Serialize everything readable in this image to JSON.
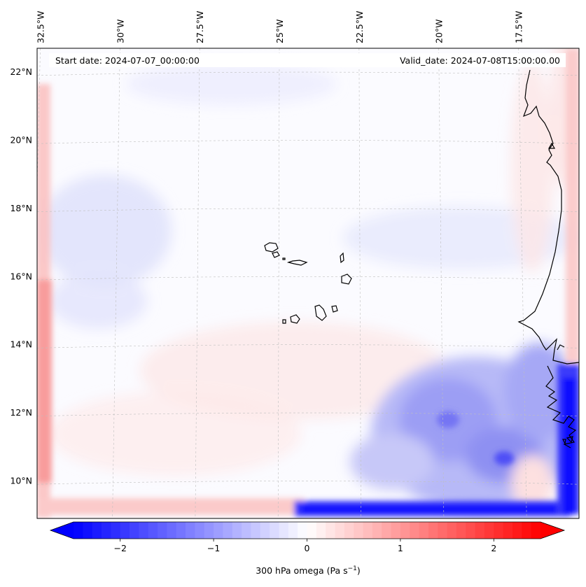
{
  "map": {
    "start_label": "Start date: 2024-07-07_00:00:00",
    "valid_label": "Valid_date: 2024-07-08T15:00:00.00",
    "lon_labels": [
      "32.5°W",
      "30°W",
      "27.5°W",
      "25°W",
      "22.5°W",
      "20°W",
      "17.5°W"
    ],
    "lat_labels": [
      "22°N",
      "20°N",
      "18°N",
      "16°N",
      "14°N",
      "12°N",
      "10°N"
    ],
    "lon_values": [
      -32.5,
      -30,
      -27.5,
      -25,
      -22.5,
      -20,
      -17.5
    ],
    "lat_values": [
      22,
      20,
      18,
      16,
      14,
      12,
      10
    ],
    "extent": {
      "lon_min": -32.6,
      "lon_max": -15.6,
      "lat_min": 8.9,
      "lat_max": 22.7
    },
    "field": "300 hPa omega",
    "units": "Pa s⁻¹"
  },
  "colorbar": {
    "label": "300 hPa omega (Pa s",
    "label_exp": "−1",
    "label_close": ")",
    "tick_labels": [
      "−2",
      "−1",
      "0",
      "1",
      "2"
    ],
    "tick_values": [
      -2,
      -1,
      0,
      1,
      2
    ],
    "range": [
      -2.5,
      2.5
    ],
    "cmap": "bwr",
    "extend": "both"
  },
  "colors": {
    "negative": "#0000ff",
    "zero": "#ffffff",
    "positive": "#ff0000",
    "coast": "#000000",
    "grid": "#bfbfbf"
  }
}
